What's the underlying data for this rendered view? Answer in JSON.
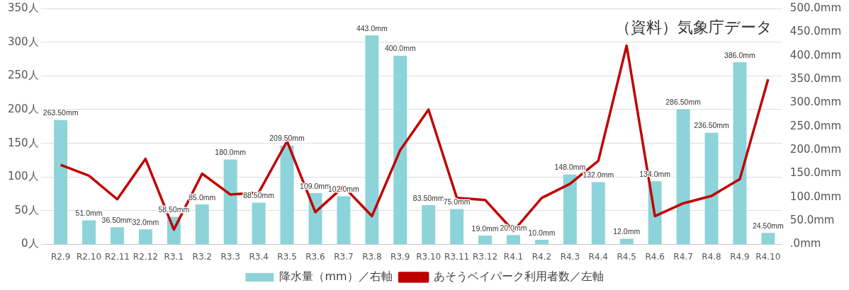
{
  "chart_data": {
    "type": "bar",
    "categories": [
      "R2.9",
      "R2.10",
      "R2.11",
      "R2.12",
      "R3.1",
      "R3.2",
      "R3.3",
      "R3.4",
      "R3.5",
      "R3.6",
      "R3.7",
      "R3.8",
      "R3.9",
      "R3.10",
      "R3.11",
      "R3.12",
      "R4.1",
      "R4.2",
      "R4.3",
      "R4.4",
      "R4.5",
      "R4.6",
      "R4.7",
      "R4.8",
      "R4.9",
      "R4.10"
    ],
    "series": [
      {
        "name": "降水量（mm）／右軸",
        "axis": "y2",
        "color": "#8dd3da",
        "values": [
          263.5,
          51,
          36.5,
          32,
          58.5,
          85,
          180,
          88.5,
          209.5,
          109,
          102,
          443,
          400,
          83.5,
          75,
          19,
          20,
          10,
          148,
          132,
          12,
          134,
          286.5,
          236.5,
          386,
          24.5
        ],
        "value_labels": [
          "263.50mm",
          "51.0mm",
          "36.50mm",
          "32.0mm",
          "58.50mm",
          "85.0mm",
          "180.0mm",
          "88.50mm",
          "209.50mm",
          "109.0mm",
          "102.0mm",
          "443.0mm",
          "400.0mm",
          "83.50mm",
          "75.0mm",
          "19.0mm",
          "20.0mm",
          "10.0mm",
          "148.0mm",
          "132.0mm",
          "12.0mm",
          "134.0mm",
          "286.50mm",
          "236.50mm",
          "386.0mm",
          "24.50mm"
        ]
      },
      {
        "name": "あそうベイパーク利用者数／左軸",
        "type": "line",
        "color": "#c00000",
        "values": [
          118,
          102,
          67,
          127,
          22,
          105,
          74,
          77,
          153,
          48,
          86,
          42,
          140,
          200,
          69,
          66,
          20,
          69,
          90,
          124,
          295,
          42,
          61,
          72,
          97,
          245
        ]
      }
    ],
    "ylim": [
      0,
      350
    ],
    "yticks": [
      {
        "value": 0,
        "label": "0人"
      },
      {
        "value": 50,
        "label": "50人"
      },
      {
        "value": 100,
        "label": "100人"
      },
      {
        "value": 150,
        "label": "150人"
      },
      {
        "value": 200,
        "label": "200人"
      },
      {
        "value": 250,
        "label": "250人"
      },
      {
        "value": 300,
        "label": "300人"
      },
      {
        "value": 350,
        "label": "350人"
      }
    ],
    "y2lim": [
      0,
      500
    ],
    "y2ticks": [
      {
        "value": 0,
        "label": ".0mm"
      },
      {
        "value": 50,
        "label": "50.0mm"
      },
      {
        "value": 100,
        "label": "100.0mm"
      },
      {
        "value": 150,
        "label": "150.0mm"
      },
      {
        "value": 200,
        "label": "200.0mm"
      },
      {
        "value": 250,
        "label": "250.0mm"
      },
      {
        "value": 300,
        "label": "300.0mm"
      },
      {
        "value": 350,
        "label": "350.0mm"
      },
      {
        "value": 400,
        "label": "400.0mm"
      },
      {
        "value": 450,
        "label": "450.0mm"
      },
      {
        "value": 500,
        "label": "500.0mm"
      }
    ],
    "annotations": [
      "（資料）気象庁データ"
    ],
    "grid": "y",
    "legend": "bottom",
    "marker": "none"
  }
}
